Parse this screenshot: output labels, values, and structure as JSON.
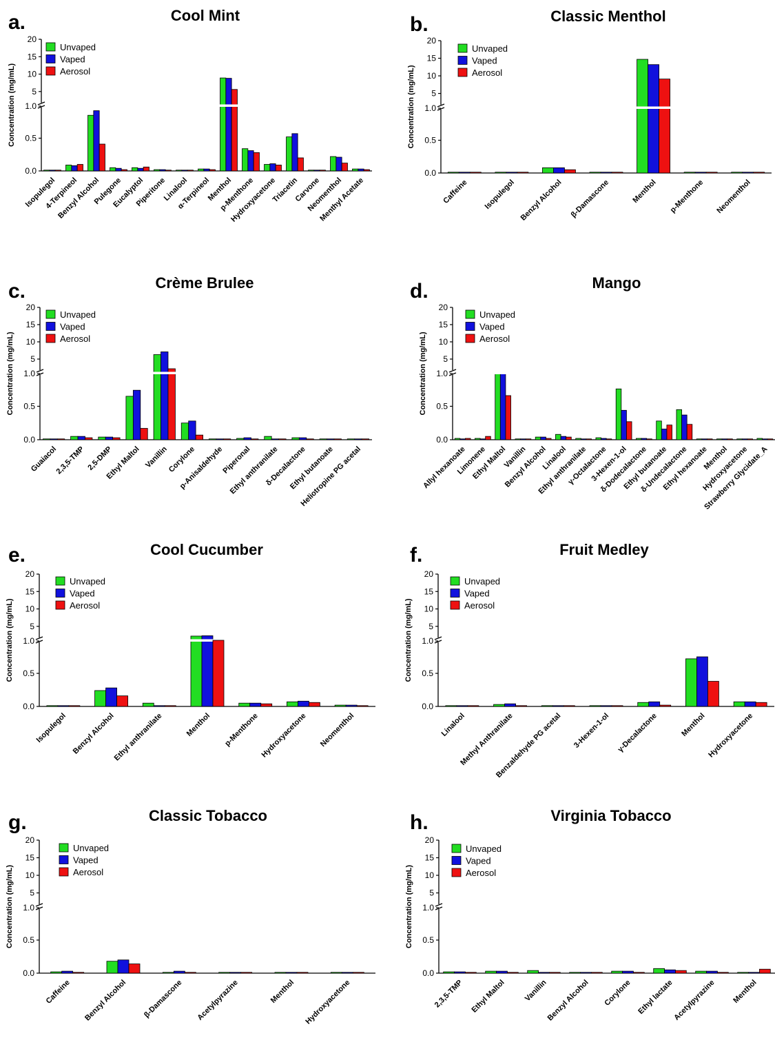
{
  "legend_labels": [
    "Unvaped",
    "Vaped",
    "Aerosol"
  ],
  "colors": {
    "Unvaped": "#22dd22",
    "Vaped": "#1111dd",
    "Aerosol": "#ee1111"
  },
  "chart_data": [
    {
      "type": "bar",
      "letter": "a.",
      "title": "Cool Mint",
      "ylabel": "Concentration (mg/mL)",
      "yticks_lower": [
        "0.0",
        "0.5",
        "1.0"
      ],
      "yticks_upper": [
        "5",
        "10",
        "15",
        "20"
      ],
      "axis_break": true,
      "lower_range": [
        0,
        1.0
      ],
      "upper_range": [
        1.0,
        20
      ],
      "categories": [
        "Isopulegol",
        "4-Terpineol",
        "Benzyl Alcohol",
        "Pulegone",
        "Eucalyptol",
        "Piperitone",
        "Linalool",
        "α-Terpineol",
        "Menthol",
        "p-Menthone",
        "Hydroxyacetone",
        "Triacetin",
        "Carvone",
        "Neomenthol",
        "Menthyl Acetate"
      ],
      "series": [
        {
          "name": "Unvaped",
          "values": [
            0.01,
            0.09,
            0.85,
            0.05,
            0.05,
            0.02,
            0.01,
            0.03,
            8.9,
            0.34,
            0.1,
            0.52,
            0.01,
            0.22,
            0.03
          ]
        },
        {
          "name": "Vaped",
          "values": [
            0.01,
            0.08,
            0.92,
            0.04,
            0.04,
            0.02,
            0.01,
            0.03,
            8.8,
            0.31,
            0.11,
            0.57,
            0.01,
            0.21,
            0.03
          ]
        },
        {
          "name": "Aerosol",
          "values": [
            0.01,
            0.1,
            0.41,
            0.02,
            0.06,
            0.01,
            0.01,
            0.02,
            5.6,
            0.28,
            0.09,
            0.2,
            0.01,
            0.12,
            0.02
          ]
        }
      ]
    },
    {
      "type": "bar",
      "letter": "b.",
      "title": "Classic Menthol",
      "ylabel": "Concentration (mg/mL)",
      "yticks_lower": [
        "0.0",
        "0.5",
        "1.0"
      ],
      "yticks_upper": [
        "5",
        "10",
        "15",
        "20"
      ],
      "axis_break": true,
      "lower_range": [
        0,
        1.0
      ],
      "upper_range": [
        1.0,
        20
      ],
      "categories": [
        "Caffeine",
        "Isopulegol",
        "Benzyl Alcohol",
        "β-Damascone",
        "Menthol",
        "p-Menthone",
        "Neomenthol"
      ],
      "series": [
        {
          "name": "Unvaped",
          "values": [
            0.005,
            0.01,
            0.08,
            0.005,
            14.7,
            0.005,
            0.005
          ]
        },
        {
          "name": "Vaped",
          "values": [
            0.005,
            0.005,
            0.08,
            0.005,
            13.2,
            0.005,
            0.005
          ]
        },
        {
          "name": "Aerosol",
          "values": [
            0.002,
            0.002,
            0.05,
            0.002,
            9.1,
            0.002,
            0.002
          ]
        }
      ]
    },
    {
      "type": "bar",
      "letter": "c.",
      "title": "Crème Brulee",
      "ylabel": "Concentration (mg/mL)",
      "yticks_lower": [
        "0.0",
        "0.5",
        "1.0"
      ],
      "yticks_upper": [
        "5",
        "10",
        "15",
        "20"
      ],
      "axis_break": true,
      "lower_range": [
        0,
        1.0
      ],
      "upper_range": [
        1.0,
        20
      ],
      "categories": [
        "Guaiacol",
        "2,3,5-TMP",
        "2,5-DMP",
        "Ethyl Maltol",
        "Vanillin",
        "Corylone",
        "p-Anisaldehyde",
        "Piperonal",
        "Ethyl anthranilate",
        "δ-Decalactone",
        "Ethyl butanoate",
        "Heliotropine PG acetal"
      ],
      "series": [
        {
          "name": "Unvaped",
          "values": [
            0.01,
            0.05,
            0.04,
            0.65,
            6.3,
            0.25,
            0.01,
            0.02,
            0.05,
            0.03,
            0.005,
            0.005
          ]
        },
        {
          "name": "Vaped",
          "values": [
            0.01,
            0.05,
            0.04,
            0.74,
            7.1,
            0.28,
            0.01,
            0.03,
            0.01,
            0.03,
            0.005,
            0.005
          ]
        },
        {
          "name": "Aerosol",
          "values": [
            0.005,
            0.03,
            0.03,
            0.17,
            2.2,
            0.07,
            0.005,
            0.01,
            0.01,
            0.01,
            0.01,
            0.005
          ]
        }
      ]
    },
    {
      "type": "bar",
      "letter": "d.",
      "title": "Mango",
      "ylabel": "Concentration (mg/mL)",
      "yticks_lower": [
        "0.0",
        "0.5",
        "1.0"
      ],
      "yticks_upper": [
        "5",
        "10",
        "15",
        "20"
      ],
      "axis_break": true,
      "lower_range": [
        0,
        1.0
      ],
      "upper_range": [
        1.0,
        20
      ],
      "categories": [
        "Allyl hexanoate",
        "Limonene",
        "Ethyl Maltol",
        "Vanillin",
        "Benzyl Alcohol",
        "Linalool",
        "Ethyl anthranilate",
        "γ-Octalactone",
        "3-Hexen-1-ol",
        "δ-Dodecalactone",
        "Ethyl butanoate",
        "δ-Undecalactone",
        "Ethyl hexanoate",
        "Menthol",
        "Hydroxyacetone",
        "Strawberry Glycidate_A"
      ],
      "series": [
        {
          "name": "Unvaped",
          "values": [
            0.02,
            0.02,
            1.1,
            0.01,
            0.04,
            0.08,
            0.02,
            0.03,
            0.76,
            0.02,
            0.28,
            0.45,
            0.005,
            0.005,
            0.005,
            0.02
          ]
        },
        {
          "name": "Vaped",
          "values": [
            0.01,
            0.01,
            1.05,
            0.01,
            0.04,
            0.05,
            0.01,
            0.02,
            0.44,
            0.02,
            0.16,
            0.37,
            0.005,
            0.005,
            0.005,
            0.01
          ]
        },
        {
          "name": "Aerosol",
          "values": [
            0.02,
            0.05,
            0.66,
            0.01,
            0.02,
            0.04,
            0.01,
            0.01,
            0.27,
            0.01,
            0.22,
            0.23,
            0.005,
            0.005,
            0.005,
            0.005
          ]
        }
      ]
    },
    {
      "type": "bar",
      "letter": "e.",
      "title": "Cool Cucumber",
      "ylabel": "Concentration (mg/mL)",
      "yticks_lower": [
        "0.0",
        "0.5",
        "1.0"
      ],
      "yticks_upper": [
        "5",
        "10",
        "15",
        "20"
      ],
      "axis_break": true,
      "lower_range": [
        0,
        1.0
      ],
      "upper_range": [
        1.0,
        20
      ],
      "categories": [
        "Isopulegol",
        "Benzyl Alcohol",
        "Ethyl anthranilate",
        "Menthol",
        "p-Menthone",
        "Hydroxyacetone",
        "Neomenthol"
      ],
      "series": [
        {
          "name": "Unvaped",
          "values": [
            0.01,
            0.24,
            0.05,
            2.2,
            0.05,
            0.07,
            0.02
          ]
        },
        {
          "name": "Vaped",
          "values": [
            0.01,
            0.28,
            0.01,
            2.3,
            0.05,
            0.08,
            0.02
          ]
        },
        {
          "name": "Aerosol",
          "values": [
            0.005,
            0.16,
            0.01,
            1.0,
            0.04,
            0.06,
            0.01
          ]
        }
      ]
    },
    {
      "type": "bar",
      "letter": "f.",
      "title": "Fruit Medley",
      "ylabel": "Concentration (mg/mL)",
      "yticks_lower": [
        "0.0",
        "0.5",
        "1.0"
      ],
      "yticks_upper": [
        "5",
        "10",
        "15",
        "20"
      ],
      "axis_break": true,
      "lower_range": [
        0,
        1.0
      ],
      "upper_range": [
        1.0,
        20
      ],
      "categories": [
        "Linalool",
        "Methyl Anthranilate",
        "Benzaldehyde PG acetal",
        "3-Hexen-1-ol",
        "γ-Decalactone",
        "Menthol",
        "Hydroxyacetone"
      ],
      "series": [
        {
          "name": "Unvaped",
          "values": [
            0.005,
            0.03,
            0.005,
            0.005,
            0.06,
            0.72,
            0.07
          ]
        },
        {
          "name": "Vaped",
          "values": [
            0.005,
            0.04,
            0.005,
            0.005,
            0.07,
            0.75,
            0.07
          ]
        },
        {
          "name": "Aerosol",
          "values": [
            0.005,
            0.01,
            0.005,
            0.005,
            0.02,
            0.38,
            0.06
          ]
        }
      ]
    },
    {
      "type": "bar",
      "letter": "g.",
      "title": "Classic Tobacco",
      "ylabel": "Concentration (mg/mL)",
      "yticks_lower": [
        "0.0",
        "0.5",
        "1.0"
      ],
      "yticks_upper": [
        "5",
        "10",
        "15",
        "20"
      ],
      "axis_break": true,
      "lower_range": [
        0,
        1.0
      ],
      "upper_range": [
        1.0,
        20
      ],
      "categories": [
        "Caffeine",
        "Benzyl Alcohol",
        "β-Damascone",
        "Acetylpyrazine",
        "Menthol",
        "Hydroxyacetone"
      ],
      "series": [
        {
          "name": "Unvaped",
          "values": [
            0.02,
            0.18,
            0.01,
            0.005,
            0.005,
            0.005
          ]
        },
        {
          "name": "Vaped",
          "values": [
            0.03,
            0.2,
            0.03,
            0.005,
            0.005,
            0.005
          ]
        },
        {
          "name": "Aerosol",
          "values": [
            0.01,
            0.14,
            0.01,
            0.005,
            0.01,
            0.005
          ]
        }
      ]
    },
    {
      "type": "bar",
      "letter": "h.",
      "title": "Virginia Tobacco",
      "ylabel": "Concentration (mg/mL)",
      "yticks_lower": [
        "0.0",
        "0.5",
        "1.0"
      ],
      "yticks_upper": [
        "5",
        "10",
        "15",
        "20"
      ],
      "axis_break": true,
      "lower_range": [
        0,
        1.0
      ],
      "upper_range": [
        1.0,
        20
      ],
      "categories": [
        "2,3,5-TMP",
        "Ethyl Maltol",
        "Vanillin",
        "Benzyl Alcohol",
        "Corylone",
        "Ethyl lactate",
        "Acetylpyrazine",
        "Menthol"
      ],
      "series": [
        {
          "name": "Unvaped",
          "values": [
            0.02,
            0.03,
            0.04,
            0.005,
            0.03,
            0.07,
            0.03,
            0.005
          ]
        },
        {
          "name": "Vaped",
          "values": [
            0.02,
            0.03,
            0.01,
            0.005,
            0.03,
            0.05,
            0.03,
            0.005
          ]
        },
        {
          "name": "Aerosol",
          "values": [
            0.01,
            0.01,
            0.005,
            0.01,
            0.01,
            0.04,
            0.01,
            0.06
          ]
        }
      ]
    }
  ]
}
